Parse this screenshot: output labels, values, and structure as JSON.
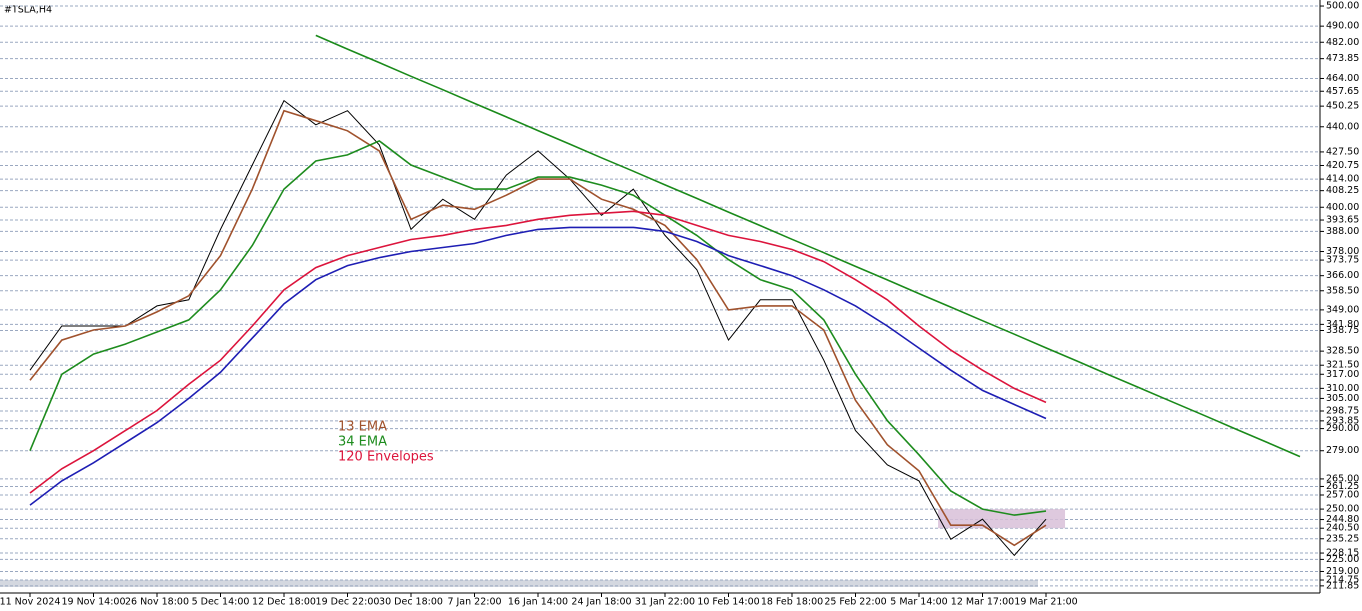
{
  "chart_data": {
    "type": "line",
    "title": "#TSLA,H4",
    "categories": [
      "11 Nov 2024",
      null,
      "19 Nov 14:00",
      null,
      "26 Nov 18:00",
      null,
      "5 Dec 14:00",
      null,
      "12 Dec 18:00",
      null,
      "19 Dec 22:00",
      null,
      "30 Dec 18:00",
      null,
      "7 Jan 22:00",
      null,
      "16 Jan 14:00",
      null,
      "24 Jan 18:00",
      null,
      "31 Jan 22:00",
      null,
      "10 Feb 14:00",
      null,
      "18 Feb 18:00",
      null,
      "25 Feb 22:00",
      null,
      "5 Mar 14:00",
      null,
      "12 Mar 17:00",
      null,
      "19 Mar 21:00",
      null,
      null,
      null,
      null,
      null,
      null,
      null,
      null
    ],
    "series": [
      {
        "color": "#000000",
        "values": [
          319,
          341,
          341,
          341,
          351,
          354,
          389,
          421,
          453,
          441,
          448,
          431,
          389,
          404,
          394,
          416,
          428,
          414,
          396,
          409,
          386,
          369,
          334,
          354,
          354,
          324,
          289,
          272,
          264,
          235,
          245,
          227,
          245,
          null,
          null,
          null,
          null,
          null,
          null,
          null,
          null
        ]
      },
      {
        "name": "13 EMA",
        "color": "#a0522d",
        "values": [
          314,
          334,
          339,
          341,
          348,
          356,
          376,
          409,
          448,
          443,
          438,
          428,
          394,
          401,
          399,
          406,
          414,
          414,
          404,
          399,
          391,
          374,
          349,
          351,
          351,
          339,
          304,
          282,
          269,
          242,
          242,
          232,
          242,
          null,
          null,
          null,
          null,
          null,
          null,
          null,
          null
        ]
      },
      {
        "name": "34 EMA",
        "color": "#1e8c1e",
        "values": [
          279,
          317,
          327,
          332,
          338,
          344,
          359,
          381,
          409,
          423,
          426,
          433,
          421,
          415,
          409,
          409,
          415,
          415,
          411,
          406,
          396,
          386,
          374,
          364,
          359,
          344,
          317,
          294,
          277,
          259,
          250,
          247,
          249,
          null,
          null,
          null,
          null,
          null,
          null,
          null,
          null
        ]
      },
      {
        "name": "120 Envelopes",
        "color": "#dc143c",
        "values": [
          258,
          270,
          279,
          289,
          299,
          312,
          324,
          341,
          359,
          370,
          376,
          380,
          384,
          386,
          389,
          391,
          394,
          396,
          397,
          398,
          396,
          391,
          386,
          383,
          379,
          373,
          364,
          354,
          341,
          329,
          319,
          310,
          303,
          null,
          null,
          null,
          null,
          null,
          null,
          null,
          null
        ]
      },
      {
        "color": "#1e1eb4",
        "values": [
          252,
          264,
          273,
          283,
          293,
          305,
          318,
          335,
          352,
          364,
          371,
          375,
          378,
          380,
          382,
          386,
          389,
          390,
          390,
          390,
          388,
          383,
          376,
          371,
          366,
          359,
          351,
          341,
          330,
          319,
          309,
          302,
          295,
          null,
          null,
          null,
          null,
          null,
          null,
          null,
          null
        ]
      },
      {
        "color": "#1a8a1a",
        "values": [
          null,
          null,
          null,
          null,
          null,
          null,
          null,
          null,
          null,
          485.4,
          478.6,
          471.9,
          465.1,
          458.4,
          451.6,
          444.9,
          438.1,
          431.4,
          424.6,
          417.9,
          411.1,
          404.4,
          397.6,
          390.9,
          384.1,
          377.4,
          370.6,
          363.9,
          357.1,
          350.4,
          343.6,
          336.9,
          330.1,
          323.4,
          316.6,
          309.9,
          303.1,
          296.4,
          289.6,
          282.9,
          276.1
        ]
      }
    ],
    "zone": {
      "from": 28.6,
      "to": 32.6,
      "low": 240.5,
      "high": 250,
      "color": "#d8bfd8"
    },
    "ylim": [
      208.3,
      503
    ],
    "yticks": [
      {
        "value": 500,
        "label": "500.00"
      },
      {
        "value": 490,
        "label": "490.00"
      },
      {
        "value": 482,
        "label": "482.00"
      },
      {
        "value": 473.85,
        "label": "473.85"
      },
      {
        "value": 464,
        "label": "464.00"
      },
      {
        "value": 457.65,
        "label": "457.65"
      },
      {
        "value": 450.25,
        "label": "450.25"
      },
      {
        "value": 440,
        "label": "440.00"
      },
      {
        "value": 427.5,
        "label": "427.50"
      },
      {
        "value": 420.75,
        "label": "420.75"
      },
      {
        "value": 414,
        "label": "414.00"
      },
      {
        "value": 408.25,
        "label": "408.25"
      },
      {
        "value": 400,
        "label": "400.00"
      },
      {
        "value": 393.65,
        "label": "393.65"
      },
      {
        "value": 388,
        "label": "388.00"
      },
      {
        "value": 378,
        "label": "378.00"
      },
      {
        "value": 373.75,
        "label": "373.75"
      },
      {
        "value": 366,
        "label": "366.00"
      },
      {
        "value": 358.5,
        "label": "358.50"
      },
      {
        "value": 349,
        "label": "349.00"
      },
      {
        "value": 341.8,
        "label": "341.80"
      },
      {
        "value": 338.75,
        "label": "338.75"
      },
      {
        "value": 328.5,
        "label": "328.50"
      },
      {
        "value": 321.5,
        "label": "321.50"
      },
      {
        "value": 317,
        "label": "317.00"
      },
      {
        "value": 310,
        "label": "310.00"
      },
      {
        "value": 305,
        "label": "305.00"
      },
      {
        "value": 298.75,
        "label": "298.75"
      },
      {
        "value": 293.85,
        "label": "293.85"
      },
      {
        "value": 290,
        "label": "290.00"
      },
      {
        "value": 279,
        "label": "279.00"
      },
      {
        "value": 265,
        "label": "265.00"
      },
      {
        "value": 261.25,
        "label": "261.25"
      },
      {
        "value": 257,
        "label": "257.00"
      },
      {
        "value": 250,
        "label": "250.00"
      },
      {
        "value": 244.8,
        "label": "244.80"
      },
      {
        "value": 240.5,
        "label": "240.50"
      },
      {
        "value": 235.25,
        "label": "235.25"
      },
      {
        "value": 228.15,
        "label": "228.15"
      },
      {
        "value": 225,
        "label": "225.00"
      },
      {
        "value": 219,
        "label": "219.00"
      },
      {
        "value": 214.75,
        "label": "214.75"
      },
      {
        "value": 211.85,
        "label": "211.85"
      }
    ],
    "grid": true
  }
}
